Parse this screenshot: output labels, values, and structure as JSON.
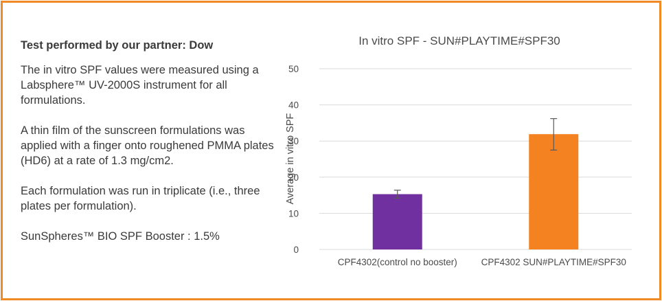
{
  "text_panel": {
    "heading": "Test performed by our partner: Dow",
    "paragraphs": [
      "The in vitro SPF values were measured using a Labsphere™ UV-2000S instrument for all formulations.",
      "A thin film of the sunscreen formulations was applied with a finger onto roughened PMMA plates (HD6) at a rate of 1.3 mg/cm2.",
      "Each formulation was run in triplicate (i.e., three plates per formulation).",
      "SunSpheres™ BIO SPF Booster : 1.5%"
    ]
  },
  "chart_data": {
    "type": "bar",
    "title": "In vitro SPF - SUN#PLAYTIME#SPF30",
    "xlabel": "",
    "ylabel": "Average in vitro SPF",
    "ylim": [
      0,
      50
    ],
    "yticks": [
      0,
      10,
      20,
      30,
      40,
      50
    ],
    "grid": true,
    "categories": [
      "CPF4302(control no booster)",
      "CPF4302 SUN#PLAYTIME#SPF30"
    ],
    "values": [
      15.3,
      31.9
    ],
    "error_low": [
      14.2,
      27.5
    ],
    "error_high": [
      16.4,
      36.2
    ],
    "colors": [
      "#7030a0",
      "#f58220"
    ]
  },
  "colors": {
    "frame": "#f08a24",
    "gridline": "#d9d9d9",
    "errorbar": "#595959"
  }
}
